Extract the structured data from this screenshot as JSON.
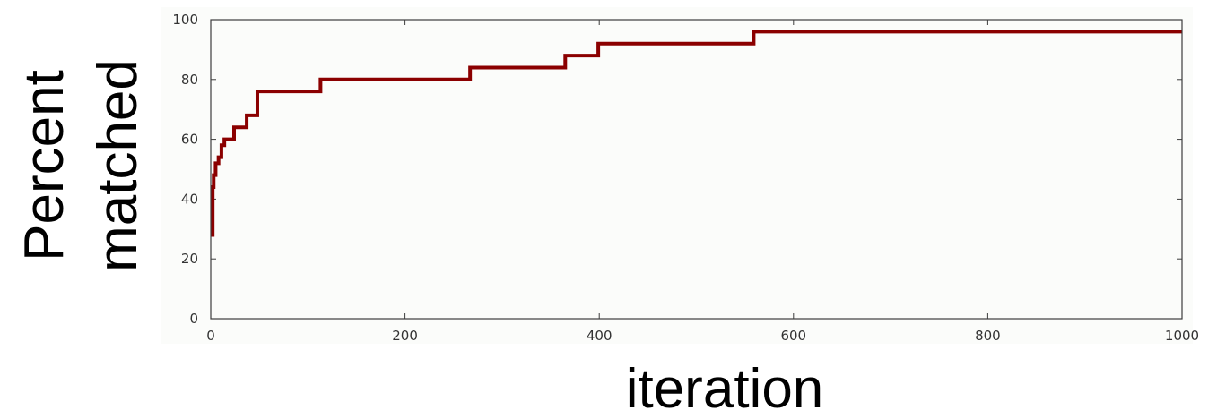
{
  "chart_data": {
    "type": "line",
    "title": "",
    "xlabel": "iteration",
    "ylabel_lines": [
      "Percent",
      "matched"
    ],
    "xlim": [
      0,
      1000
    ],
    "ylim": [
      0,
      100
    ],
    "x_ticks": [
      0,
      200,
      400,
      600,
      800,
      1000
    ],
    "y_ticks": [
      0,
      20,
      40,
      60,
      80,
      100
    ],
    "x_tick_labels": [
      "0",
      "200",
      "400",
      "600",
      "800",
      "1000"
    ],
    "y_tick_labels": [
      "0",
      "20",
      "40",
      "60",
      "80",
      "100"
    ],
    "grid": false,
    "legend": "none",
    "plot_background": "#fbfcfa",
    "series": [
      {
        "color": "#8b0000",
        "step": true,
        "points": [
          [
            0,
            28
          ],
          [
            2,
            44
          ],
          [
            3,
            48
          ],
          [
            5,
            52
          ],
          [
            8,
            54
          ],
          [
            11,
            58
          ],
          [
            14,
            60
          ],
          [
            24,
            64
          ],
          [
            37,
            68
          ],
          [
            48,
            76
          ],
          [
            113,
            80
          ],
          [
            267,
            84
          ],
          [
            365,
            88
          ],
          [
            399,
            92
          ],
          [
            559,
            96
          ],
          [
            1000,
            96
          ]
        ]
      }
    ]
  }
}
